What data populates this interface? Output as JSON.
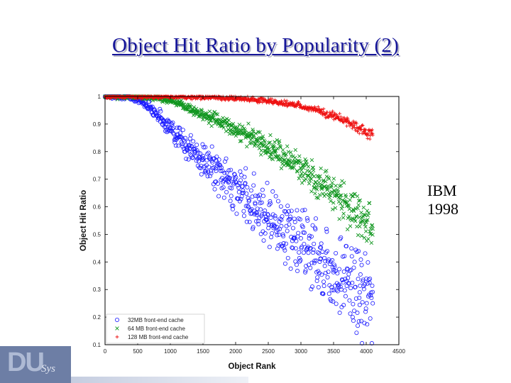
{
  "title": "Object Hit Ratio by Popularity (2)",
  "note": [
    "IBM",
    "1998"
  ],
  "colors": {
    "title": "#151599",
    "series_32": "#1a1aff",
    "series_64": "#10961f",
    "series_128": "#ee1111"
  },
  "logo": {
    "text": "DU",
    "subtext": "Sys"
  },
  "chart_data": {
    "type": "scatter",
    "xlabel": "Object Rank",
    "ylabel": "Object Hit Ratio",
    "xlim": [
      0,
      4500
    ],
    "ylim": [
      0.1,
      1
    ],
    "xticks": [
      "0",
      "500",
      "1000",
      "1500",
      "2000",
      "2500",
      "3000",
      "3500",
      "4000",
      "4500"
    ],
    "yticks": [
      "0.1",
      "0.2",
      "0.3",
      "0.4",
      "0.5",
      "0.6",
      "0.7",
      "0.8",
      "0.9",
      "1"
    ],
    "grid": false,
    "legend_position": "bottom-left",
    "series": [
      {
        "name": "32MB front-end cache",
        "marker": "circle",
        "color": "#1a1aff",
        "x": [
          0,
          300,
          500,
          700,
          900,
          1100,
          1300,
          1500,
          1700,
          1900,
          2100,
          2300,
          2500,
          2700,
          2900,
          3100,
          3300,
          3500,
          3700,
          3900,
          4100
        ],
        "y": [
          1.0,
          1.0,
          0.99,
          0.96,
          0.91,
          0.86,
          0.81,
          0.77,
          0.73,
          0.69,
          0.65,
          0.61,
          0.57,
          0.53,
          0.49,
          0.45,
          0.41,
          0.37,
          0.33,
          0.29,
          0.25
        ]
      },
      {
        "name": "64 MB front-end cache",
        "marker": "x",
        "color": "#10961f",
        "x": [
          0,
          500,
          800,
          1000,
          1200,
          1400,
          1600,
          1800,
          2000,
          2200,
          2400,
          2600,
          2800,
          3000,
          3200,
          3400,
          3600,
          3800,
          4000,
          4100
        ],
        "y": [
          1.0,
          1.0,
          0.995,
          0.985,
          0.965,
          0.945,
          0.925,
          0.905,
          0.88,
          0.855,
          0.83,
          0.8,
          0.77,
          0.74,
          0.71,
          0.67,
          0.63,
          0.59,
          0.55,
          0.52
        ]
      },
      {
        "name": "128 MB front-end cache",
        "marker": "plus",
        "color": "#ee1111",
        "x": [
          0,
          1000,
          1500,
          2000,
          2300,
          2600,
          2900,
          3100,
          3300,
          3500,
          3700,
          3900,
          4100
        ],
        "y": [
          1.0,
          1.0,
          0.998,
          0.994,
          0.988,
          0.98,
          0.97,
          0.96,
          0.945,
          0.93,
          0.91,
          0.885,
          0.86
        ]
      }
    ]
  }
}
